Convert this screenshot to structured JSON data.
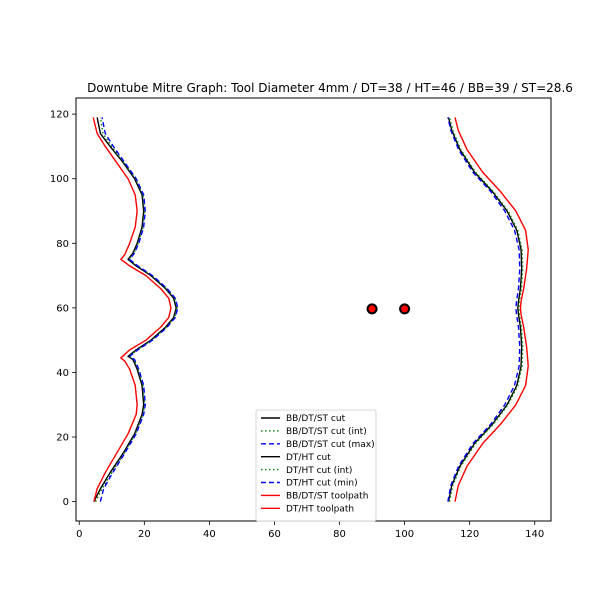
{
  "chart_data": {
    "type": "line",
    "title": "Downtube Mitre Graph: Tool Diameter 4mm / DT=38 / HT=46 / BB=39 / ST=28.6",
    "xlabel": "",
    "ylabel": "",
    "xlim": [
      -1,
      145
    ],
    "ylim": [
      -6,
      125
    ],
    "x_ticks": [
      0,
      20,
      40,
      60,
      80,
      100,
      120,
      140
    ],
    "y_ticks": [
      0,
      20,
      40,
      60,
      80,
      100,
      120
    ],
    "grid": false,
    "legend_position": "lower center",
    "series": [
      {
        "name": "BB/DT/ST cut",
        "color": "#000000",
        "style": "solid",
        "x": [
          4.5,
          6.5,
          9.5,
          13.5,
          17,
          19.3,
          19.8,
          19.3,
          17.8,
          16.5,
          15.0,
          17.5,
          22.0,
          26.5,
          29.0,
          29.8,
          29.0,
          26.5,
          22.0,
          17.5,
          15.0,
          16.5,
          17.8,
          19.3,
          19.8,
          19.3,
          17,
          13.5,
          9.5,
          6.5,
          5.5
        ],
        "y": [
          0,
          4,
          9,
          15,
          21,
          27,
          30,
          36,
          41,
          44,
          45,
          47,
          50,
          54,
          57,
          60,
          63,
          66,
          70,
          73,
          75,
          77,
          80,
          85,
          90,
          95,
          100,
          105,
          110,
          114,
          119
        ]
      },
      {
        "name": "BB/DT/ST cut (int)",
        "color": "#008000",
        "style": "dotted",
        "x": [
          5.0,
          7.0,
          10.0,
          13.8,
          17.3,
          19.6,
          20.1,
          19.6,
          18.1,
          16.8,
          15.3,
          17.8,
          22.3,
          26.8,
          29.3,
          30.1,
          29.3,
          26.8,
          22.3,
          17.8,
          15.3,
          16.8,
          18.1,
          19.6,
          20.1,
          19.6,
          17.3,
          13.8,
          10.0,
          7.3,
          6.5
        ],
        "y": [
          0,
          4,
          9,
          15,
          21,
          27,
          30,
          36,
          41,
          44,
          45,
          47,
          50,
          54,
          57,
          60,
          63,
          66,
          70,
          73,
          75,
          77,
          80,
          85,
          90,
          95,
          100,
          105,
          110,
          114,
          119
        ]
      },
      {
        "name": "BB/DT/ST cut (max)",
        "color": "#0000ff",
        "style": "dashed",
        "x": [
          6.5,
          7.5,
          10.3,
          14.0,
          17.5,
          19.8,
          20.3,
          19.8,
          18.3,
          17.0,
          15.5,
          18.0,
          22.5,
          27.0,
          29.5,
          30.3,
          29.5,
          27.0,
          22.5,
          18.0,
          15.5,
          17.0,
          18.3,
          19.8,
          20.3,
          19.8,
          17.5,
          14.0,
          10.5,
          8.0,
          7.0
        ],
        "y": [
          0,
          4,
          9,
          15,
          21,
          27,
          30,
          36,
          41,
          44,
          45,
          47,
          50,
          54,
          57,
          60,
          63,
          66,
          70,
          73,
          75,
          77,
          80,
          85,
          90,
          95,
          100,
          105,
          110,
          114,
          119
        ]
      },
      {
        "name": "DT/HT cut",
        "color": "#000000",
        "style": "solid",
        "x": [
          113.5,
          114.5,
          117,
          121.5,
          127,
          131.5,
          134.5,
          135.8,
          136.0,
          135.6,
          135.0,
          134.8,
          135.0,
          135.6,
          136.0,
          135.8,
          134.5,
          131.5,
          127,
          121.5,
          117,
          114.5,
          113.5
        ],
        "y": [
          0,
          5,
          11,
          18,
          24,
          30,
          36,
          42,
          48,
          54,
          58,
          60,
          62,
          66,
          72,
          78,
          84,
          90,
          96,
          102,
          109,
          115,
          119
        ]
      },
      {
        "name": "DT/HT cut (int)",
        "color": "#008000",
        "style": "dotted",
        "x": [
          113.8,
          114.8,
          117.3,
          121.8,
          127.3,
          131.8,
          134.8,
          136.1,
          136.3,
          135.9,
          135.3,
          135.1,
          135.3,
          135.9,
          136.3,
          136.1,
          134.8,
          131.8,
          127.3,
          121.8,
          117.3,
          114.8,
          113.8
        ],
        "y": [
          0,
          5,
          11,
          18,
          24,
          30,
          36,
          42,
          48,
          54,
          58,
          60,
          62,
          66,
          72,
          78,
          84,
          90,
          96,
          102,
          109,
          115,
          119
        ]
      },
      {
        "name": "DT/HT cut (min)",
        "color": "#0000ff",
        "style": "dashed",
        "x": [
          113.3,
          114.2,
          116.6,
          121.0,
          126.5,
          130.8,
          133.8,
          135.2,
          135.4,
          135.0,
          134.4,
          134.2,
          134.4,
          135.0,
          135.4,
          135.2,
          133.8,
          130.8,
          126.5,
          121.0,
          116.6,
          114.2,
          113.3
        ],
        "y": [
          0,
          5,
          11,
          18,
          24,
          30,
          36,
          42,
          48,
          54,
          58,
          60,
          62,
          66,
          72,
          78,
          84,
          90,
          96,
          102,
          109,
          115,
          119
        ]
      },
      {
        "name": "BB/DT/ST toolpath",
        "color": "#ff0000",
        "style": "solid",
        "x": [
          4.5,
          5.5,
          8.0,
          11.5,
          15.0,
          17.5,
          17.8,
          17.2,
          15.5,
          14.0,
          12.8,
          15.5,
          20.5,
          25.0,
          27.5,
          28.2,
          27.5,
          25.0,
          20.5,
          15.5,
          12.8,
          14.0,
          15.5,
          17.2,
          17.8,
          17.2,
          15.0,
          11.5,
          8.0,
          5.5,
          4.3
        ],
        "y": [
          0,
          4,
          9,
          15,
          21,
          27,
          30,
          36,
          41,
          43.5,
          44.5,
          47,
          50,
          54,
          57,
          60,
          63,
          66,
          70,
          73,
          75,
          76.5,
          80,
          85,
          90,
          95,
          100,
          105,
          110,
          114,
          119
        ]
      },
      {
        "name": "DT/HT toolpath",
        "color": "#ff0000",
        "style": "solid",
        "x": [
          115.5,
          116.5,
          119.2,
          124.0,
          129.5,
          134.2,
          137.2,
          138.0,
          137.5,
          136.6,
          135.8,
          135.6,
          135.8,
          136.6,
          137.5,
          138.0,
          137.2,
          134.2,
          129.5,
          124.0,
          119.2,
          116.5,
          115.5
        ],
        "y": [
          0,
          5,
          11,
          18,
          24,
          30,
          36,
          42,
          48,
          54,
          58,
          60,
          62,
          66,
          72,
          78,
          84,
          90,
          96,
          102,
          109,
          115,
          119
        ]
      }
    ],
    "markers": [
      {
        "x": 90,
        "y": 59.7,
        "fill": "#ff0000",
        "edge": "#000000"
      },
      {
        "x": 100,
        "y": 59.7,
        "fill": "#ff0000",
        "edge": "#000000"
      }
    ]
  }
}
